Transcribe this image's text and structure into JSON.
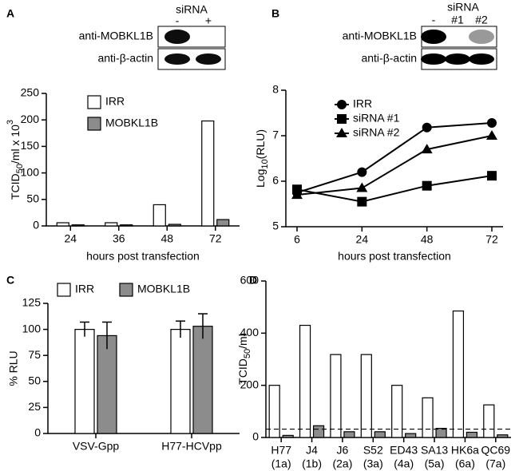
{
  "chart_data": [
    {
      "type": "bar",
      "panel": "A",
      "inset": {
        "header": "siRNA",
        "lanes": [
          "-",
          "+"
        ],
        "rows": [
          "anti-MOBKL1B",
          "anti-β-actin"
        ]
      },
      "y_label": {
        "text": "TCID",
        "sub": "50",
        "after": "/ml x 10",
        "sup": "3"
      },
      "x_label": "hours post transfection",
      "categories": [
        "24",
        "36",
        "48",
        "72"
      ],
      "series": [
        {
          "name": "IRR",
          "color": "#ffffff",
          "values": [
            6,
            6,
            40,
            198
          ]
        },
        {
          "name": "MOBKL1B",
          "color": "#8c8c8c",
          "values": [
            2,
            2,
            3,
            12
          ]
        }
      ],
      "ylim": [
        0,
        250
      ],
      "yticks": [
        0,
        50,
        100,
        150,
        200,
        250
      ],
      "legend": "top-left"
    },
    {
      "type": "line",
      "panel": "B",
      "inset": {
        "header": "siRNA",
        "lanes": [
          "-",
          "#1",
          "#2"
        ],
        "rows": [
          "anti-MOBKL1B",
          "anti-β-actin"
        ]
      },
      "y_label": {
        "text": "Log",
        "sub": "10",
        "after": "(RLU)"
      },
      "x_label": "hours post transfection",
      "categories": [
        "6",
        "24",
        "48",
        "72"
      ],
      "series": [
        {
          "name": "IRR",
          "color": "#000000",
          "marker": "circle",
          "values": [
            5.75,
            6.2,
            7.18,
            7.28
          ]
        },
        {
          "name": "siRNA #1",
          "color": "#000000",
          "marker": "square",
          "values": [
            5.82,
            5.55,
            5.9,
            6.12
          ]
        },
        {
          "name": "siRNA #2",
          "color": "#000000",
          "marker": "triangle",
          "values": [
            5.7,
            5.85,
            6.7,
            7.0
          ]
        }
      ],
      "ylim": [
        5,
        8
      ],
      "yticks": [
        5,
        6,
        7,
        8
      ],
      "legend": "top-left"
    },
    {
      "type": "bar",
      "panel": "C",
      "y_label": "% RLU",
      "categories": [
        "VSV-Gpp",
        "H77-HCVpp"
      ],
      "series": [
        {
          "name": "IRR",
          "color": "#ffffff",
          "values": [
            100,
            100
          ],
          "errors": [
            7,
            8
          ]
        },
        {
          "name": "MOBKL1B",
          "color": "#8c8c8c",
          "values": [
            94,
            103
          ],
          "errors": [
            13,
            12
          ]
        }
      ],
      "ylim": [
        0,
        125
      ],
      "yticks": [
        0,
        25,
        50,
        75,
        100,
        125
      ],
      "legend": "top"
    },
    {
      "type": "bar",
      "panel": "D",
      "y_label": {
        "text": "TCID",
        "sub": "50",
        "after": "/ml"
      },
      "categories": [
        "H77",
        "J4",
        "J6",
        "S52",
        "ED43",
        "SA13",
        "HK6a",
        "QC69"
      ],
      "category_notes": [
        "(1a)",
        "(1b)",
        "(2a)",
        "(3a)",
        "(4a)",
        "(5a)",
        "(6a)",
        "(7a)"
      ],
      "series": [
        {
          "name": "IRR",
          "color": "#ffffff",
          "values": [
            200,
            430,
            318,
            318,
            200,
            152,
            485,
            125
          ]
        },
        {
          "name": "MOBKL1B",
          "color": "#8c8c8c",
          "values": [
            8,
            45,
            22,
            22,
            15,
            35,
            20,
            10
          ]
        }
      ],
      "threshold": 32,
      "ylim": [
        0,
        600
      ],
      "yticks": [
        0,
        200,
        400,
        600
      ]
    }
  ]
}
